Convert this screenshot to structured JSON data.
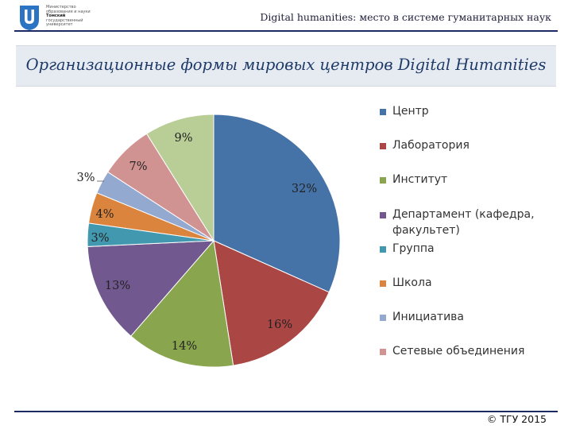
{
  "header": {
    "logo_lines": [
      "Министерство",
      "образования и науки",
      "Томский",
      "государственный",
      "университет"
    ],
    "title": "Digital humanities: место в системе гуманитарных наук"
  },
  "band": {
    "title": "Организационные формы мировых центров Digital Humanities"
  },
  "chart_data": {
    "type": "pie",
    "title": "",
    "legend_position": "right",
    "slices": [
      {
        "name": "Центр",
        "value": 32,
        "label": "32%",
        "color": "#4572a7"
      },
      {
        "name": "Лаборатория",
        "value": 16,
        "label": "16%",
        "color": "#aa4643"
      },
      {
        "name": "Институт",
        "value": 14,
        "label": "14%",
        "color": "#89a54e"
      },
      {
        "name": "Департамент (кафедра, факультет)",
        "value": 13,
        "label": "13%",
        "color": "#71588f"
      },
      {
        "name": "Группа",
        "value": 3,
        "label": "3%",
        "color": "#4198af"
      },
      {
        "name": "Школа",
        "value": 4,
        "label": "4%",
        "color": "#db843d"
      },
      {
        "name": "Инициатива",
        "value": 3,
        "label": "3%",
        "color": "#93a9cf"
      },
      {
        "name": "Сетевые объединения",
        "value": 7,
        "label": "7%",
        "color": "#d19392"
      },
      {
        "name": "",
        "value": 9,
        "label": "9%",
        "color": "#b9cd96"
      }
    ]
  },
  "footer": {
    "copyright": "© ТГУ 2015"
  }
}
